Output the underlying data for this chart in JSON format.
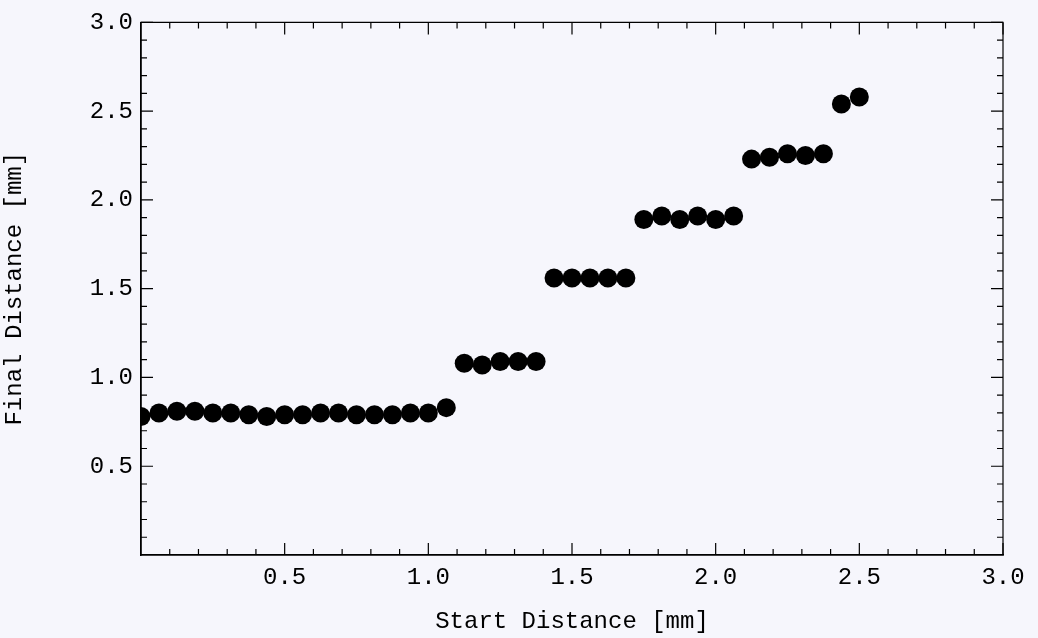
{
  "chart_data": {
    "type": "scatter",
    "xlabel": "Start Distance [mm]",
    "ylabel": "Final Distance [mm]",
    "x": [
      0,
      0.0625,
      0.125,
      0.1875,
      0.25,
      0.3125,
      0.375,
      0.4375,
      0.5,
      0.5625,
      0.625,
      0.6875,
      0.75,
      0.8125,
      0.875,
      0.9375,
      1.0,
      1.0625,
      1.125,
      1.1875,
      1.25,
      1.3125,
      1.375,
      1.4375,
      1.5,
      1.5625,
      1.625,
      1.6875,
      1.75,
      1.8125,
      1.875,
      1.9375,
      2.0,
      2.0625,
      2.125,
      2.1875,
      2.25,
      2.3125,
      2.375,
      2.4375,
      2.5
    ],
    "series": [
      {
        "color": "#000000",
        "values": [
          0.78,
          0.8,
          0.81,
          0.81,
          0.8,
          0.8,
          0.79,
          0.78,
          0.79,
          0.79,
          0.8,
          0.8,
          0.79,
          0.79,
          0.79,
          0.8,
          0.8,
          0.83,
          1.08,
          1.07,
          1.09,
          1.09,
          1.09,
          1.56,
          1.56,
          1.56,
          1.56,
          1.56,
          1.89,
          1.91,
          1.89,
          1.91,
          1.89,
          1.91,
          2.23,
          2.24,
          2.26,
          2.25,
          2.26,
          2.54,
          2.58
        ]
      }
    ],
    "xlim": [
      0,
      3
    ],
    "xticks": [
      {
        "value": 0.1,
        "label": null
      },
      {
        "value": 0.2,
        "label": null
      },
      {
        "value": 0.3,
        "label": null
      },
      {
        "value": 0.4,
        "label": null
      },
      {
        "value": 0.5,
        "label": "0.5"
      },
      {
        "value": 0.6,
        "label": null
      },
      {
        "value": 0.7,
        "label": null
      },
      {
        "value": 0.8,
        "label": null
      },
      {
        "value": 0.9,
        "label": null
      },
      {
        "value": 1.0,
        "label": "1.0"
      },
      {
        "value": 1.1,
        "label": null
      },
      {
        "value": 1.2,
        "label": null
      },
      {
        "value": 1.3,
        "label": null
      },
      {
        "value": 1.4,
        "label": null
      },
      {
        "value": 1.5,
        "label": "1.5"
      },
      {
        "value": 1.6,
        "label": null
      },
      {
        "value": 1.7,
        "label": null
      },
      {
        "value": 1.8,
        "label": null
      },
      {
        "value": 1.9,
        "label": null
      },
      {
        "value": 2.0,
        "label": "2.0"
      },
      {
        "value": 2.1,
        "label": null
      },
      {
        "value": 2.2,
        "label": null
      },
      {
        "value": 2.3,
        "label": null
      },
      {
        "value": 2.4,
        "label": null
      },
      {
        "value": 2.5,
        "label": "2.5"
      },
      {
        "value": 2.6,
        "label": null
      },
      {
        "value": 2.7,
        "label": null
      },
      {
        "value": 2.8,
        "label": null
      },
      {
        "value": 2.9,
        "label": null
      },
      {
        "value": 3.0,
        "label": "3.0"
      }
    ],
    "ylim": [
      0,
      3
    ],
    "yticks": [
      {
        "value": 0.1,
        "label": null
      },
      {
        "value": 0.2,
        "label": null
      },
      {
        "value": 0.3,
        "label": null
      },
      {
        "value": 0.4,
        "label": null
      },
      {
        "value": 0.5,
        "label": "0.5"
      },
      {
        "value": 0.6,
        "label": null
      },
      {
        "value": 0.7,
        "label": null
      },
      {
        "value": 0.8,
        "label": null
      },
      {
        "value": 0.9,
        "label": null
      },
      {
        "value": 1.0,
        "label": "1.0"
      },
      {
        "value": 1.1,
        "label": null
      },
      {
        "value": 1.2,
        "label": null
      },
      {
        "value": 1.3,
        "label": null
      },
      {
        "value": 1.4,
        "label": null
      },
      {
        "value": 1.5,
        "label": "1.5"
      },
      {
        "value": 1.6,
        "label": null
      },
      {
        "value": 1.7,
        "label": null
      },
      {
        "value": 1.8,
        "label": null
      },
      {
        "value": 1.9,
        "label": null
      },
      {
        "value": 2.0,
        "label": "2.0"
      },
      {
        "value": 2.1,
        "label": null
      },
      {
        "value": 2.2,
        "label": null
      },
      {
        "value": 2.3,
        "label": null
      },
      {
        "value": 2.4,
        "label": null
      },
      {
        "value": 2.5,
        "label": "2.5"
      },
      {
        "value": 2.6,
        "label": null
      },
      {
        "value": 2.7,
        "label": null
      },
      {
        "value": 2.8,
        "label": null
      },
      {
        "value": 2.9,
        "label": null
      },
      {
        "value": 3.0,
        "label": "3.0"
      }
    ],
    "grid": false,
    "legend": false,
    "marker": "circle"
  }
}
